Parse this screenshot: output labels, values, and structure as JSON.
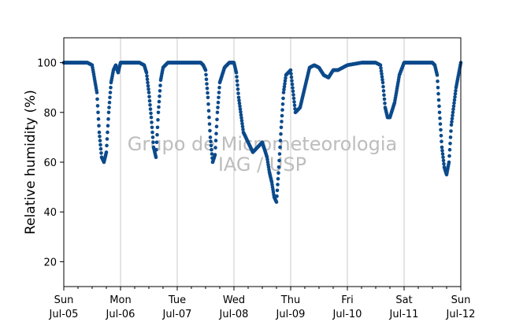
{
  "chart_data": {
    "type": "scatter",
    "ylabel": "Relative humidity (%)",
    "xlabel": "",
    "ylim": [
      10,
      110
    ],
    "xlim": [
      "2015-07-05 00:00",
      "2015-07-12 00:00"
    ],
    "yticks": [
      20,
      40,
      60,
      80,
      100
    ],
    "xticks": [
      {
        "day": "Sun",
        "date": "Jul-05"
      },
      {
        "day": "Mon",
        "date": "Jul-06"
      },
      {
        "day": "Tue",
        "date": "Jul-07"
      },
      {
        "day": "Wed",
        "date": "Jul-08"
      },
      {
        "day": "Thu",
        "date": "Jul-09"
      },
      {
        "day": "Fri",
        "date": "Jul-10"
      },
      {
        "day": "Sat",
        "date": "Jul-11"
      },
      {
        "day": "Sun",
        "date": "Jul-12"
      }
    ],
    "grid": "vertical at day boundaries",
    "marker_color": "#0b4a8b",
    "watermark": [
      "Grupo de Micrometeorologia",
      "IAG / USP"
    ],
    "series": [
      {
        "x": [
          "2015-07-05 00:00",
          "2015-07-05 06:00",
          "2015-07-05 08:00",
          "2015-07-05 10:00",
          "2015-07-05 12:00",
          "2015-07-05 14:00",
          "2015-07-05 15:00",
          "2015-07-05 16:00",
          "2015-07-05 17:00",
          "2015-07-05 18:00",
          "2015-07-05 19:00",
          "2015-07-05 20:00",
          "2015-07-05 21:00",
          "2015-07-05 22:00",
          "2015-07-05 23:00",
          "2015-07-06 00:00",
          "2015-07-06 06:00",
          "2015-07-06 08:00",
          "2015-07-06 10:00",
          "2015-07-06 11:00",
          "2015-07-06 12:00",
          "2015-07-06 13:00",
          "2015-07-06 14:00",
          "2015-07-06 15:00",
          "2015-07-06 16:00",
          "2015-07-06 17:00",
          "2015-07-06 18:00",
          "2015-07-06 20:00",
          "2015-07-06 22:00",
          "2015-07-07 00:00",
          "2015-07-07 06:00",
          "2015-07-07 08:00",
          "2015-07-07 10:00",
          "2015-07-07 11:00",
          "2015-07-07 12:00",
          "2015-07-07 13:00",
          "2015-07-07 14:00",
          "2015-07-07 15:00",
          "2015-07-07 16:00",
          "2015-07-07 17:00",
          "2015-07-07 18:00",
          "2015-07-07 20:00",
          "2015-07-07 22:00",
          "2015-07-08 00:00",
          "2015-07-08 01:00",
          "2015-07-08 02:00",
          "2015-07-08 04:00",
          "2015-07-08 06:00",
          "2015-07-08 08:00",
          "2015-07-08 10:00",
          "2015-07-08 12:00",
          "2015-07-08 14:00",
          "2015-07-08 15:00",
          "2015-07-08 16:00",
          "2015-07-08 17:00",
          "2015-07-08 18:00",
          "2015-07-08 19:00",
          "2015-07-08 20:00",
          "2015-07-08 21:00",
          "2015-07-08 22:00",
          "2015-07-09 00:00",
          "2015-07-09 02:00",
          "2015-07-09 04:00",
          "2015-07-09 06:00",
          "2015-07-09 08:00",
          "2015-07-09 10:00",
          "2015-07-09 12:00",
          "2015-07-09 14:00",
          "2015-07-09 16:00",
          "2015-07-09 18:00",
          "2015-07-09 20:00",
          "2015-07-09 22:00",
          "2015-07-10 00:00",
          "2015-07-10 06:00",
          "2015-07-10 08:00",
          "2015-07-10 10:00",
          "2015-07-10 12:00",
          "2015-07-10 14:00",
          "2015-07-10 15:00",
          "2015-07-10 16:00",
          "2015-07-10 17:00",
          "2015-07-10 18:00",
          "2015-07-10 20:00",
          "2015-07-10 22:00",
          "2015-07-11 00:00",
          "2015-07-11 06:00",
          "2015-07-11 08:00",
          "2015-07-11 10:00",
          "2015-07-11 12:00",
          "2015-07-11 13:00",
          "2015-07-11 14:00",
          "2015-07-11 15:00",
          "2015-07-11 16:00",
          "2015-07-11 17:00",
          "2015-07-11 18:00",
          "2015-07-11 19:00",
          "2015-07-11 20:00",
          "2015-07-11 22:00",
          "2015-07-12 00:00"
        ],
        "y": [
          100,
          100,
          100,
          100,
          99,
          88,
          72,
          62,
          60,
          64,
          80,
          92,
          97,
          99,
          96,
          100,
          100,
          100,
          99,
          96,
          88,
          78,
          66,
          62,
          80,
          93,
          98,
          100,
          100,
          100,
          100,
          100,
          100,
          99,
          97,
          86,
          70,
          60,
          63,
          80,
          92,
          98,
          100,
          100,
          96,
          86,
          72,
          68,
          64,
          66,
          68,
          62,
          56,
          52,
          46,
          44,
          58,
          74,
          88,
          95,
          97,
          80,
          82,
          90,
          98,
          99,
          98,
          95,
          94,
          97,
          97,
          98,
          99,
          100,
          100,
          100,
          100,
          99,
          92,
          82,
          78,
          78,
          84,
          95,
          100,
          100,
          100,
          100,
          100,
          99,
          95,
          80,
          66,
          58,
          55,
          60,
          75,
          90,
          100
        ]
      }
    ]
  }
}
